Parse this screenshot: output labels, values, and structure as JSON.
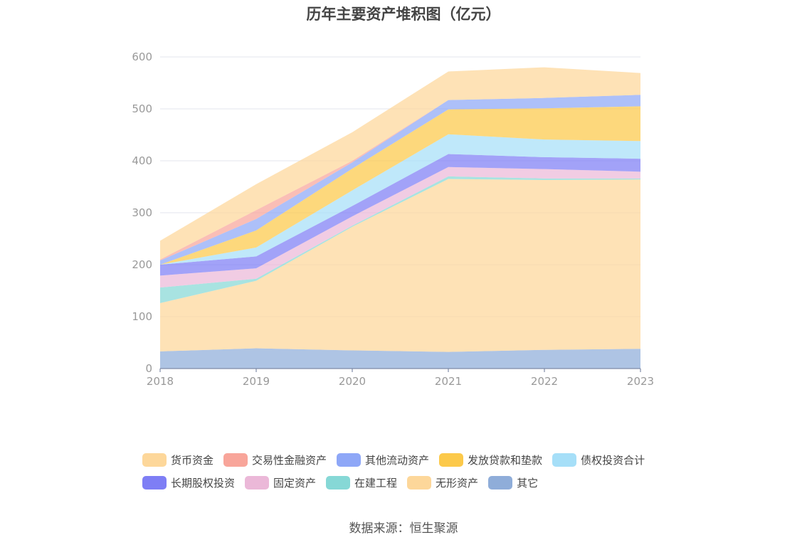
{
  "page": {
    "source": "数据来源：恒生聚源"
  },
  "chart_data": {
    "type": "area",
    "stacked": true,
    "title": "历年主要资产堆积图（亿元）",
    "x": [
      "2018",
      "2019",
      "2020",
      "2021",
      "2022",
      "2023"
    ],
    "ylim": [
      0,
      600
    ],
    "yticks": [
      "0",
      "100",
      "200",
      "300",
      "400",
      "500",
      "600"
    ],
    "grid": true,
    "legend_position": "bottom",
    "series": [
      {
        "name": "其它",
        "color": "#8fadd9",
        "values": [
          33,
          39,
          35,
          32,
          36,
          38
        ]
      },
      {
        "name": "无形资产",
        "color": "#fdd79a",
        "values": [
          93,
          130,
          238,
          333,
          327,
          326
        ]
      },
      {
        "name": "在建工程",
        "color": "#86d8d6",
        "values": [
          30,
          4,
          2,
          5,
          3,
          2
        ]
      },
      {
        "name": "固定资产",
        "color": "#ebb8d8",
        "values": [
          23,
          20,
          18,
          18,
          18,
          13
        ]
      },
      {
        "name": "长期股权投资",
        "color": "#7e7ef5",
        "values": [
          21,
          23,
          20,
          25,
          23,
          25
        ]
      },
      {
        "name": "债权投资合计",
        "color": "#a6dff8",
        "values": [
          0,
          17,
          30,
          38,
          34,
          34
        ]
      },
      {
        "name": "发放贷款和垫款",
        "color": "#fcc94a",
        "values": [
          0,
          33,
          42,
          48,
          60,
          67
        ]
      },
      {
        "name": "其他流动资产",
        "color": "#8ea7f7",
        "values": [
          8,
          22,
          12,
          18,
          20,
          22
        ]
      },
      {
        "name": "交易性金融资产",
        "color": "#f8a59a",
        "values": [
          2,
          17,
          3,
          0,
          0,
          0
        ]
      },
      {
        "name": "货币资金",
        "color": "#fdd79a",
        "values": [
          36,
          50,
          55,
          55,
          59,
          42
        ]
      }
    ],
    "legend_order": [
      "货币资金",
      "交易性金融资产",
      "其他流动资产",
      "发放贷款和垫款",
      "债权投资合计",
      "长期股权投资",
      "固定资产",
      "在建工程",
      "无形资产",
      "其它"
    ]
  }
}
